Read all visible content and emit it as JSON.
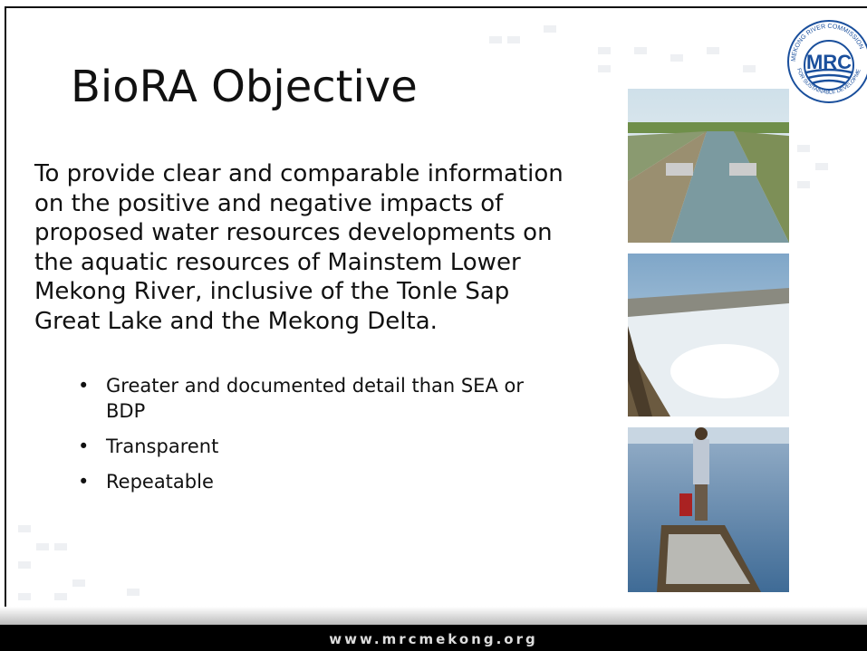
{
  "slide": {
    "title": "BioRA Objective",
    "paragraph_lines": [
      "To provide clear and comparable information",
      "on the positive and negative impacts of",
      "proposed water resources developments on",
      "the aquatic resources of Mainstem Lower",
      "Mekong River, inclusive of the Tonle Sap",
      "Great Lake and the Mekong Delta."
    ],
    "bullets": [
      "Greater and documented detail than SEA or BDP",
      "Transparent",
      "Repeatable"
    ],
    "logo": {
      "abbr": "MRC",
      "top_ring": "MEKONG RIVER COMMISSION",
      "bottom_ring": "FOR SUSTAINABLE DEVELOPMENT"
    },
    "footer": "www.mrcmekong.org"
  }
}
